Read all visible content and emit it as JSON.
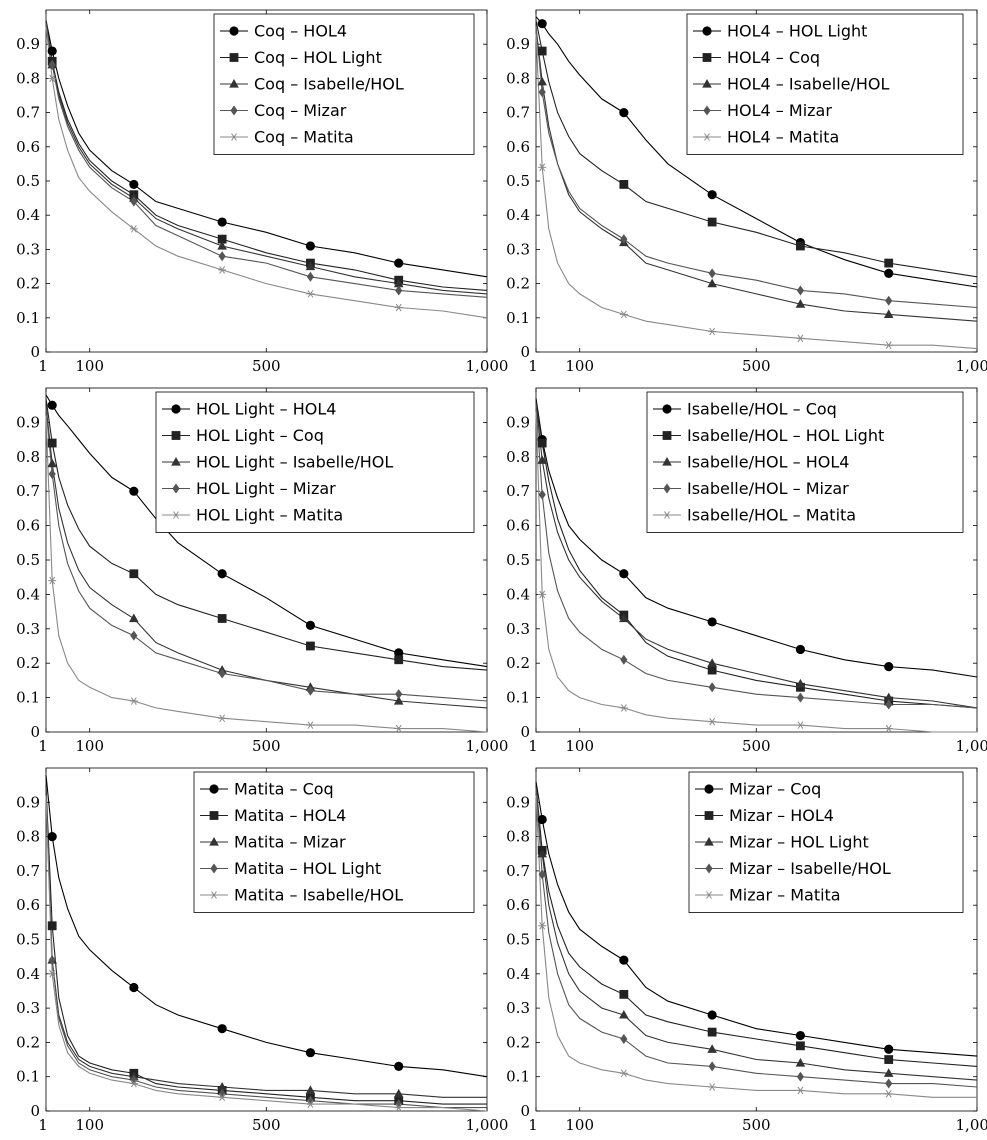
{
  "chart_data": [
    {
      "type": "line",
      "x": [
        1,
        15,
        30,
        50,
        75,
        100,
        150,
        200,
        250,
        300,
        400,
        500,
        600,
        700,
        800,
        900,
        1000
      ],
      "xticks": [
        "1",
        "100",
        "500",
        "1,000"
      ],
      "yticks": [
        "0",
        "0.1",
        "0.2",
        "0.3",
        "0.4",
        "0.5",
        "0.6",
        "0.7",
        "0.8",
        "0.9"
      ],
      "xlim": [
        1,
        1000
      ],
      "ylim": [
        0,
        1
      ],
      "legend_position": "top-right",
      "series": [
        {
          "name": "Coq – HOL4",
          "marker": "circle",
          "color": "#000000",
          "values": [
            0.97,
            0.88,
            0.8,
            0.72,
            0.64,
            0.59,
            0.53,
            0.49,
            0.44,
            0.42,
            0.38,
            0.35,
            0.31,
            0.29,
            0.26,
            0.24,
            0.22
          ]
        },
        {
          "name": "Coq – HOL Light",
          "marker": "square",
          "color": "#222222",
          "values": [
            0.97,
            0.85,
            0.76,
            0.68,
            0.61,
            0.56,
            0.5,
            0.46,
            0.4,
            0.37,
            0.33,
            0.29,
            0.26,
            0.24,
            0.21,
            0.19,
            0.18
          ]
        },
        {
          "name": "Coq – Isabelle/HOL",
          "marker": "triangle",
          "color": "#333333",
          "values": [
            0.96,
            0.84,
            0.75,
            0.67,
            0.6,
            0.55,
            0.49,
            0.45,
            0.39,
            0.36,
            0.31,
            0.28,
            0.25,
            0.22,
            0.2,
            0.18,
            0.17
          ]
        },
        {
          "name": "Coq – Mizar",
          "marker": "diamond",
          "color": "#555555",
          "values": [
            0.96,
            0.84,
            0.74,
            0.66,
            0.59,
            0.54,
            0.48,
            0.44,
            0.37,
            0.34,
            0.28,
            0.26,
            0.22,
            0.2,
            0.18,
            0.17,
            0.16
          ]
        },
        {
          "name": "Coq – Matita",
          "marker": "star",
          "color": "#888888",
          "values": [
            0.95,
            0.8,
            0.68,
            0.59,
            0.51,
            0.47,
            0.41,
            0.36,
            0.31,
            0.28,
            0.24,
            0.2,
            0.17,
            0.15,
            0.13,
            0.12,
            0.1
          ]
        }
      ]
    },
    {
      "type": "line",
      "x": [
        1,
        15,
        30,
        50,
        75,
        100,
        150,
        200,
        250,
        300,
        400,
        500,
        600,
        700,
        800,
        900,
        1000
      ],
      "xticks": [
        "1",
        "100",
        "500",
        "1,000"
      ],
      "yticks": [
        "0",
        "0.1",
        "0.2",
        "0.3",
        "0.4",
        "0.5",
        "0.6",
        "0.7",
        "0.8",
        "0.9"
      ],
      "xlim": [
        1,
        1000
      ],
      "ylim": [
        0,
        1
      ],
      "legend_position": "top-right",
      "series": [
        {
          "name": "HOL4 – HOL Light",
          "marker": "circle",
          "color": "#000000",
          "values": [
            0.98,
            0.96,
            0.93,
            0.9,
            0.85,
            0.81,
            0.74,
            0.7,
            0.62,
            0.55,
            0.46,
            0.39,
            0.32,
            0.27,
            0.23,
            0.21,
            0.19
          ]
        },
        {
          "name": "HOL4 – Coq",
          "marker": "square",
          "color": "#222222",
          "values": [
            0.97,
            0.88,
            0.79,
            0.7,
            0.63,
            0.58,
            0.53,
            0.49,
            0.44,
            0.42,
            0.38,
            0.35,
            0.31,
            0.29,
            0.26,
            0.24,
            0.22
          ]
        },
        {
          "name": "HOL4 – Isabelle/HOL",
          "marker": "triangle",
          "color": "#333333",
          "values": [
            0.95,
            0.79,
            0.66,
            0.55,
            0.46,
            0.41,
            0.36,
            0.32,
            0.26,
            0.24,
            0.2,
            0.17,
            0.14,
            0.12,
            0.11,
            0.1,
            0.09
          ]
        },
        {
          "name": "HOL4 – Mizar",
          "marker": "diamond",
          "color": "#555555",
          "values": [
            0.95,
            0.76,
            0.64,
            0.55,
            0.47,
            0.42,
            0.37,
            0.33,
            0.28,
            0.26,
            0.23,
            0.21,
            0.18,
            0.17,
            0.15,
            0.14,
            0.13
          ]
        },
        {
          "name": "HOL4 – Matita",
          "marker": "star",
          "color": "#888888",
          "values": [
            0.93,
            0.54,
            0.36,
            0.26,
            0.2,
            0.17,
            0.13,
            0.11,
            0.09,
            0.08,
            0.06,
            0.05,
            0.04,
            0.03,
            0.02,
            0.02,
            0.01
          ]
        }
      ]
    },
    {
      "type": "line",
      "x": [
        1,
        15,
        30,
        50,
        75,
        100,
        150,
        200,
        250,
        300,
        400,
        500,
        600,
        700,
        800,
        900,
        1000
      ],
      "xticks": [
        "1",
        "100",
        "500",
        "1,000"
      ],
      "yticks": [
        "0",
        "0.1",
        "0.2",
        "0.3",
        "0.4",
        "0.5",
        "0.6",
        "0.7",
        "0.8",
        "0.9"
      ],
      "xlim": [
        1,
        1000
      ],
      "ylim": [
        0,
        1
      ],
      "legend_position": "top-right",
      "series": [
        {
          "name": "HOL Light – HOL4",
          "marker": "circle",
          "color": "#000000",
          "values": [
            0.98,
            0.95,
            0.92,
            0.89,
            0.85,
            0.81,
            0.74,
            0.7,
            0.62,
            0.55,
            0.46,
            0.39,
            0.31,
            0.27,
            0.23,
            0.21,
            0.19
          ]
        },
        {
          "name": "HOL Light – Coq",
          "marker": "square",
          "color": "#222222",
          "values": [
            0.97,
            0.84,
            0.74,
            0.66,
            0.59,
            0.54,
            0.49,
            0.46,
            0.4,
            0.37,
            0.33,
            0.29,
            0.25,
            0.23,
            0.21,
            0.19,
            0.18
          ]
        },
        {
          "name": "HOL Light – Isabelle/HOL",
          "marker": "triangle",
          "color": "#333333",
          "values": [
            0.95,
            0.78,
            0.65,
            0.55,
            0.47,
            0.42,
            0.37,
            0.33,
            0.26,
            0.23,
            0.18,
            0.15,
            0.13,
            0.11,
            0.09,
            0.08,
            0.07
          ]
        },
        {
          "name": "HOL Light – Mizar",
          "marker": "diamond",
          "color": "#555555",
          "values": [
            0.94,
            0.75,
            0.6,
            0.49,
            0.41,
            0.36,
            0.31,
            0.28,
            0.23,
            0.21,
            0.17,
            0.15,
            0.12,
            0.11,
            0.11,
            0.1,
            0.09
          ]
        },
        {
          "name": "HOL Light – Matita",
          "marker": "star",
          "color": "#888888",
          "values": [
            0.92,
            0.44,
            0.28,
            0.2,
            0.15,
            0.13,
            0.1,
            0.09,
            0.07,
            0.06,
            0.04,
            0.03,
            0.02,
            0.02,
            0.01,
            0.01,
            0.0
          ]
        }
      ]
    },
    {
      "type": "line",
      "x": [
        1,
        15,
        30,
        50,
        75,
        100,
        150,
        200,
        250,
        300,
        400,
        500,
        600,
        700,
        800,
        900,
        1000
      ],
      "xticks": [
        "1",
        "100",
        "500",
        "1,000"
      ],
      "yticks": [
        "0",
        "0.1",
        "0.2",
        "0.3",
        "0.4",
        "0.5",
        "0.6",
        "0.7",
        "0.8",
        "0.9"
      ],
      "xlim": [
        1,
        1000
      ],
      "ylim": [
        0,
        1
      ],
      "legend_position": "top-right",
      "series": [
        {
          "name": "Isabelle/HOL – Coq",
          "marker": "circle",
          "color": "#000000",
          "values": [
            0.97,
            0.85,
            0.76,
            0.68,
            0.6,
            0.56,
            0.5,
            0.46,
            0.39,
            0.36,
            0.32,
            0.28,
            0.24,
            0.21,
            0.19,
            0.18,
            0.16
          ]
        },
        {
          "name": "Isabelle/HOL – HOL Light",
          "marker": "square",
          "color": "#222222",
          "values": [
            0.96,
            0.84,
            0.73,
            0.62,
            0.53,
            0.47,
            0.39,
            0.34,
            0.26,
            0.22,
            0.18,
            0.15,
            0.13,
            0.11,
            0.09,
            0.08,
            0.07
          ]
        },
        {
          "name": "Isabelle/HOL – HOL4",
          "marker": "triangle",
          "color": "#333333",
          "values": [
            0.96,
            0.79,
            0.68,
            0.58,
            0.5,
            0.45,
            0.38,
            0.33,
            0.27,
            0.24,
            0.2,
            0.17,
            0.14,
            0.12,
            0.1,
            0.09,
            0.07
          ]
        },
        {
          "name": "Isabelle/HOL – Mizar",
          "marker": "diamond",
          "color": "#555555",
          "values": [
            0.95,
            0.69,
            0.52,
            0.41,
            0.33,
            0.29,
            0.24,
            0.21,
            0.17,
            0.15,
            0.13,
            0.11,
            0.1,
            0.09,
            0.08,
            0.08,
            0.07
          ]
        },
        {
          "name": "Isabelle/HOL – Matita",
          "marker": "star",
          "color": "#888888",
          "values": [
            0.93,
            0.4,
            0.24,
            0.16,
            0.12,
            0.1,
            0.08,
            0.07,
            0.05,
            0.04,
            0.03,
            0.02,
            0.02,
            0.01,
            0.01,
            0.0,
            0.0
          ]
        }
      ]
    },
    {
      "type": "line",
      "x": [
        1,
        15,
        30,
        50,
        75,
        100,
        150,
        200,
        250,
        300,
        400,
        500,
        600,
        700,
        800,
        900,
        1000
      ],
      "xticks": [
        "1",
        "100",
        "500",
        "1,000"
      ],
      "yticks": [
        "0",
        "0.1",
        "0.2",
        "0.3",
        "0.4",
        "0.5",
        "0.6",
        "0.7",
        "0.8",
        "0.9"
      ],
      "xlim": [
        1,
        1000
      ],
      "ylim": [
        0,
        1
      ],
      "legend_position": "top-right",
      "series": [
        {
          "name": "Matita – Coq",
          "marker": "circle",
          "color": "#000000",
          "values": [
            0.98,
            0.8,
            0.68,
            0.59,
            0.51,
            0.47,
            0.41,
            0.36,
            0.31,
            0.28,
            0.24,
            0.2,
            0.17,
            0.15,
            0.13,
            0.12,
            0.1
          ]
        },
        {
          "name": "Matita – HOL4",
          "marker": "square",
          "color": "#222222",
          "values": [
            0.95,
            0.54,
            0.33,
            0.22,
            0.16,
            0.14,
            0.12,
            0.11,
            0.08,
            0.07,
            0.06,
            0.05,
            0.04,
            0.03,
            0.03,
            0.02,
            0.02
          ]
        },
        {
          "name": "Matita – Mizar",
          "marker": "triangle",
          "color": "#333333",
          "values": [
            0.93,
            0.44,
            0.28,
            0.2,
            0.15,
            0.13,
            0.11,
            0.1,
            0.09,
            0.08,
            0.07,
            0.06,
            0.06,
            0.05,
            0.05,
            0.04,
            0.04
          ]
        },
        {
          "name": "Matita – HOL Light",
          "marker": "diamond",
          "color": "#555555",
          "values": [
            0.92,
            0.44,
            0.27,
            0.19,
            0.14,
            0.12,
            0.1,
            0.09,
            0.07,
            0.06,
            0.05,
            0.04,
            0.03,
            0.02,
            0.02,
            0.01,
            0.01
          ]
        },
        {
          "name": "Matita – Isabelle/HOL",
          "marker": "star",
          "color": "#888888",
          "values": [
            0.92,
            0.4,
            0.25,
            0.17,
            0.13,
            0.11,
            0.09,
            0.08,
            0.06,
            0.05,
            0.04,
            0.03,
            0.02,
            0.02,
            0.01,
            0.01,
            0.0
          ]
        }
      ]
    },
    {
      "type": "line",
      "x": [
        1,
        15,
        30,
        50,
        75,
        100,
        150,
        200,
        250,
        300,
        400,
        500,
        600,
        700,
        800,
        900,
        1000
      ],
      "xticks": [
        "1",
        "100",
        "500",
        "1,000"
      ],
      "yticks": [
        "0",
        "0.1",
        "0.2",
        "0.3",
        "0.4",
        "0.5",
        "0.6",
        "0.7",
        "0.8",
        "0.9"
      ],
      "xlim": [
        1,
        1000
      ],
      "ylim": [
        0,
        1
      ],
      "legend_position": "top-right",
      "series": [
        {
          "name": "Mizar – Coq",
          "marker": "circle",
          "color": "#000000",
          "values": [
            0.96,
            0.85,
            0.75,
            0.66,
            0.58,
            0.53,
            0.48,
            0.44,
            0.36,
            0.32,
            0.28,
            0.24,
            0.22,
            0.2,
            0.18,
            0.17,
            0.16
          ]
        },
        {
          "name": "Mizar – HOL4",
          "marker": "square",
          "color": "#222222",
          "values": [
            0.95,
            0.76,
            0.64,
            0.54,
            0.46,
            0.42,
            0.37,
            0.34,
            0.28,
            0.26,
            0.23,
            0.21,
            0.19,
            0.17,
            0.15,
            0.14,
            0.13
          ]
        },
        {
          "name": "Mizar – HOL Light",
          "marker": "triangle",
          "color": "#333333",
          "values": [
            0.94,
            0.75,
            0.6,
            0.49,
            0.4,
            0.35,
            0.3,
            0.28,
            0.22,
            0.2,
            0.18,
            0.15,
            0.14,
            0.12,
            0.11,
            0.1,
            0.09
          ]
        },
        {
          "name": "Mizar – Isabelle/HOL",
          "marker": "diamond",
          "color": "#555555",
          "values": [
            0.94,
            0.69,
            0.52,
            0.4,
            0.31,
            0.27,
            0.23,
            0.21,
            0.16,
            0.14,
            0.13,
            0.11,
            0.1,
            0.09,
            0.08,
            0.08,
            0.07
          ]
        },
        {
          "name": "Mizar – Matita",
          "marker": "star",
          "color": "#888888",
          "values": [
            0.92,
            0.54,
            0.33,
            0.22,
            0.16,
            0.14,
            0.12,
            0.11,
            0.09,
            0.08,
            0.07,
            0.06,
            0.06,
            0.05,
            0.05,
            0.04,
            0.04
          ]
        }
      ]
    }
  ]
}
